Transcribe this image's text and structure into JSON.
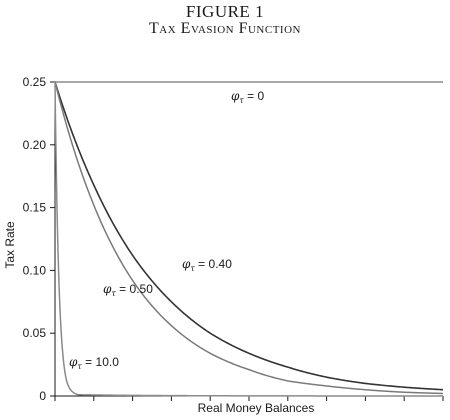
{
  "figure": {
    "number": "FIGURE 1",
    "title": "Tax Evasion Function"
  },
  "chart_data": {
    "type": "line",
    "title": "Tax Evasion Function",
    "xlabel": "Real Money Balances",
    "ylabel": "Tax Rate",
    "xlim": [
      0,
      10
    ],
    "ylim": [
      0,
      0.25
    ],
    "yticks": [
      "0",
      "0.05",
      "0.10",
      "0.15",
      "0.20",
      "0.25"
    ],
    "ytick_values": [
      0,
      0.05,
      0.1,
      0.15,
      0.2,
      0.25
    ],
    "xtick_count": 11,
    "xtick_labels_shown": false,
    "grid": false,
    "series": [
      {
        "name": "φτ = 0",
        "label_symbol": "φ",
        "label_sub": "τ",
        "label_value": "= 0",
        "phi": 0,
        "color": "#8a8a8a",
        "x": [
          0,
          10
        ],
        "y": [
          0.25,
          0.25
        ]
      },
      {
        "name": "φτ = 0.40",
        "label_symbol": "φ",
        "label_sub": "τ",
        "label_value": "= 0.40",
        "phi": 0.4,
        "color": "#333333",
        "x": [
          0,
          1,
          2,
          3,
          4,
          5,
          6,
          7,
          8,
          9,
          10
        ],
        "y": [
          0.25,
          0.168,
          0.112,
          0.075,
          0.05,
          0.034,
          0.023,
          0.015,
          0.01,
          0.007,
          0.005
        ]
      },
      {
        "name": "φτ = 0.50",
        "label_symbol": "φ",
        "label_sub": "τ",
        "label_value": "= 0.50",
        "phi": 0.5,
        "color": "#7a7a7a",
        "x": [
          0,
          1,
          2,
          3,
          4,
          5,
          6,
          7,
          8,
          9,
          10
        ],
        "y": [
          0.25,
          0.152,
          0.092,
          0.056,
          0.034,
          0.021,
          0.012,
          0.008,
          0.005,
          0.003,
          0.002
        ]
      },
      {
        "name": "φτ = 10.0",
        "label_symbol": "φ",
        "label_sub": "τ",
        "label_value": "= 10.0",
        "phi": 10,
        "color": "#8a8a8a",
        "x": [
          0,
          0.05,
          0.1,
          0.15,
          0.2,
          0.3,
          0.4,
          0.6,
          10
        ],
        "y": [
          0.25,
          0.152,
          0.092,
          0.056,
          0.034,
          0.012,
          0.005,
          0.001,
          0
        ]
      }
    ]
  }
}
